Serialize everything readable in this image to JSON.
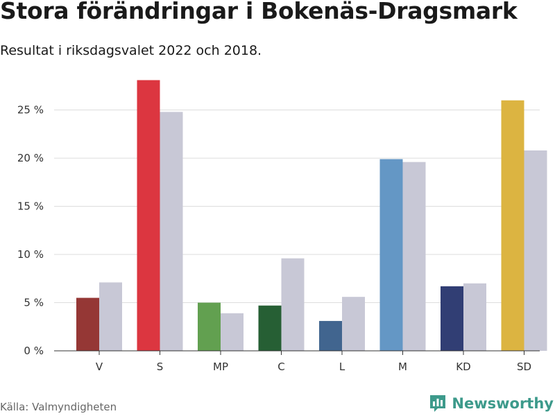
{
  "title": "Stora förändringar i Bokenäs-Dragsmark",
  "subtitle": "Resultat i riksdagsvalet 2022 och 2018.",
  "source": "Källa: Valmyndigheten",
  "brand": {
    "name": "Newsworthy",
    "icon": "newsworthy-logo-icon",
    "color": "#3d9a8b"
  },
  "chart_data": {
    "type": "bar",
    "categories": [
      "V",
      "S",
      "MP",
      "C",
      "L",
      "M",
      "KD",
      "SD"
    ],
    "series": [
      {
        "values": [
          5.5,
          28.1,
          5.0,
          4.7,
          3.1,
          19.9,
          6.7,
          26.0
        ],
        "colors": [
          "#953735",
          "#dc3640",
          "#62a050",
          "#265f34",
          "#41658f",
          "#6497c5",
          "#313e74",
          "#dcb441"
        ]
      },
      {
        "values": [
          7.1,
          24.8,
          3.9,
          9.6,
          5.6,
          19.6,
          7.0,
          20.8
        ],
        "color": "#c8c8d6"
      }
    ],
    "ylim": [
      0,
      28.5
    ],
    "yticks": [
      0,
      5,
      10,
      15,
      20,
      25
    ],
    "ytick_labels": [
      "0 %",
      "5 %",
      "10 %",
      "15 %",
      "20 %",
      "25 %"
    ],
    "grid": true,
    "legend": "none"
  }
}
